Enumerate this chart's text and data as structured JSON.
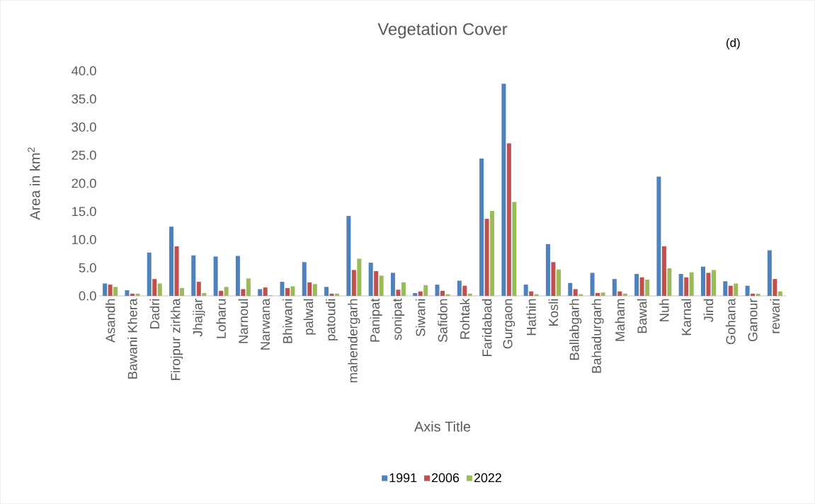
{
  "chart_data": {
    "type": "bar",
    "title": "Vegetation Cover",
    "xlabel": "Axis Title",
    "ylabel": "Area in km$^{2}$",
    "annotations": [
      "(d)"
    ],
    "categories": [
      "Asandh",
      "Bawani Khera",
      "Dadri",
      "Firojpur zirkha",
      "Jhajjar",
      "Loharu",
      "Narnoul",
      "Narwana",
      "Bhiwani",
      "palwal",
      "patoudi",
      "mahendergarh",
      "Panipat",
      "sonipat",
      "Siwani",
      "Safidon",
      "Rohtak",
      "Faridabad",
      "Gurgaon",
      "Hathin",
      "Kosli",
      "Ballabgarh",
      "Bahadurgarh",
      "Maham",
      "Bawal",
      "Nuh",
      "Karnal",
      "Jind",
      "Gohana",
      "Ganour",
      "rewari"
    ],
    "series": [
      {
        "name": "1991",
        "color": "#4f81bd",
        "values": [
          2.2,
          1.0,
          7.7,
          12.3,
          7.2,
          7.0,
          7.1,
          1.2,
          2.5,
          6.0,
          1.6,
          14.2,
          5.9,
          4.1,
          0.5,
          2.0,
          2.7,
          24.4,
          37.7,
          2.0,
          9.2,
          2.3,
          4.1,
          3.0,
          3.9,
          21.2,
          3.9,
          5.2,
          2.6,
          1.8,
          8.1
        ]
      },
      {
        "name": "2006",
        "color": "#c0504d",
        "values": [
          2.0,
          0.4,
          3.0,
          8.8,
          2.5,
          0.9,
          1.2,
          1.5,
          1.4,
          2.4,
          0.4,
          4.6,
          4.4,
          1.1,
          0.8,
          0.9,
          1.8,
          13.7,
          27.1,
          0.8,
          6.0,
          1.2,
          0.5,
          0.8,
          3.3,
          8.8,
          3.3,
          4.1,
          1.8,
          0.4,
          3.0
        ]
      },
      {
        "name": "2022",
        "color": "#9bbb59",
        "values": [
          1.6,
          0.4,
          2.2,
          1.4,
          0.5,
          1.6,
          3.1,
          0.1,
          1.7,
          2.1,
          0.4,
          6.6,
          3.6,
          2.4,
          1.9,
          0.3,
          0.4,
          15.1,
          16.7,
          0.3,
          4.7,
          0.3,
          0.6,
          0.4,
          2.9,
          4.9,
          4.2,
          4.6,
          2.2,
          0.4,
          0.8
        ]
      }
    ],
    "ylim": [
      0,
      40
    ],
    "yticks": [
      {
        "value": 0,
        "label": "0.0"
      },
      {
        "value": 5,
        "label": "5.0"
      },
      {
        "value": 10,
        "label": "10.0"
      },
      {
        "value": 15,
        "label": "15.0"
      },
      {
        "value": 20,
        "label": "20.0"
      },
      {
        "value": 25,
        "label": "25.0"
      },
      {
        "value": 30,
        "label": "30.0"
      },
      {
        "value": 35,
        "label": "35.0"
      },
      {
        "value": 40,
        "label": "40.0"
      }
    ],
    "legend": "bottom"
  }
}
